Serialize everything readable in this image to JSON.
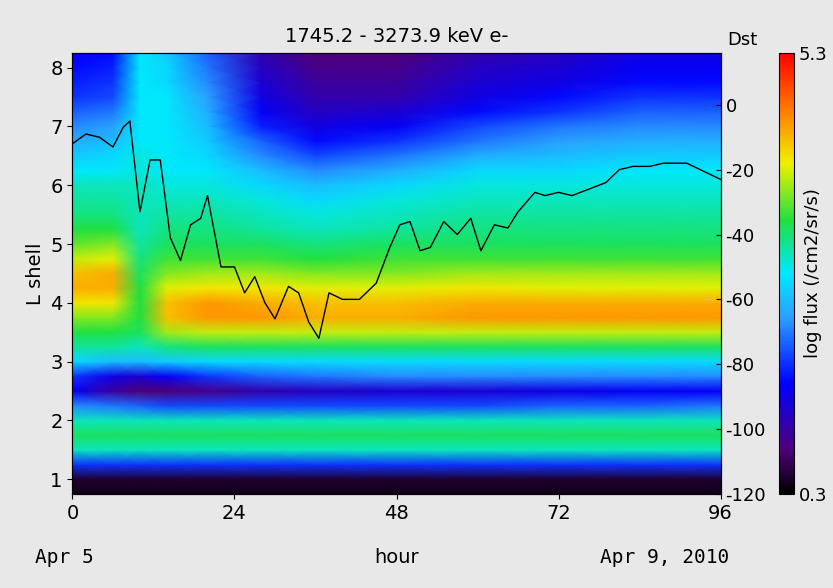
{
  "chart_data": {
    "type": "heatmap",
    "title": "1745.2 - 3273.9 keV e-",
    "x_label": "hour",
    "y_label": "L shell",
    "y2_label": "Dst",
    "annotations": [
      "Apr 5",
      "Apr 9, 2010"
    ],
    "xlim": [
      0,
      96
    ],
    "xticks": [
      0,
      24,
      48,
      72,
      96
    ],
    "ylim": [
      0.75,
      8.25
    ],
    "yticks": [
      1,
      2,
      3,
      4,
      5,
      6,
      7,
      8
    ],
    "y2lim": [
      -120,
      16
    ],
    "y2ticks": [
      -120,
      -100,
      -80,
      -60,
      -40,
      -20,
      0
    ],
    "x": [
      0,
      6,
      10,
      14,
      20,
      28,
      36,
      48,
      60,
      72,
      84,
      96
    ],
    "y": [
      0.75,
      1.0,
      1.25,
      1.5,
      1.75,
      2.0,
      2.25,
      2.5,
      2.75,
      3.0,
      3.25,
      3.5,
      3.75,
      4.0,
      4.25,
      4.5,
      4.75,
      5.0,
      5.25,
      5.5,
      5.75,
      6.0,
      6.25,
      6.5,
      6.75,
      7.0,
      7.25,
      7.5,
      7.75,
      8.0,
      8.25
    ],
    "cells": [
      [
        0.4,
        0.4,
        0.4,
        0.4,
        0.4,
        0.4,
        0.4,
        0.4,
        0.4,
        0.4,
        0.4,
        0.4
      ],
      [
        0.5,
        0.5,
        0.5,
        0.5,
        0.5,
        0.5,
        0.5,
        0.5,
        0.5,
        0.5,
        0.5,
        0.5
      ],
      [
        1.8,
        1.8,
        1.8,
        1.8,
        1.8,
        1.8,
        1.8,
        1.8,
        1.8,
        1.8,
        1.8,
        1.8
      ],
      [
        3.0,
        3.0,
        3.0,
        3.0,
        3.0,
        3.0,
        3.0,
        3.0,
        3.0,
        3.0,
        3.0,
        3.0
      ],
      [
        3.3,
        3.3,
        3.3,
        3.3,
        3.3,
        3.3,
        3.3,
        3.3,
        3.3,
        3.3,
        3.3,
        3.3
      ],
      [
        3.0,
        3.0,
        3.0,
        3.0,
        3.0,
        3.0,
        3.0,
        3.0,
        3.0,
        3.0,
        3.0,
        3.0
      ],
      [
        2.2,
        2.1,
        2.0,
        1.9,
        1.9,
        1.9,
        1.9,
        1.9,
        1.9,
        2.0,
        2.0,
        2.1
      ],
      [
        1.5,
        1.0,
        0.8,
        0.8,
        0.9,
        1.1,
        1.2,
        1.3,
        1.3,
        1.4,
        1.5,
        1.5
      ],
      [
        1.8,
        1.4,
        1.3,
        1.5,
        1.8,
        2.0,
        2.1,
        2.2,
        2.2,
        2.2,
        2.2,
        2.2
      ],
      [
        2.7,
        2.5,
        2.5,
        2.6,
        2.7,
        2.7,
        2.7,
        2.7,
        2.7,
        2.7,
        2.7,
        2.7
      ],
      [
        3.1,
        3.1,
        3.0,
        3.2,
        3.3,
        3.3,
        3.3,
        3.3,
        3.3,
        3.3,
        3.3,
        3.3
      ],
      [
        3.4,
        3.4,
        3.3,
        3.8,
        3.9,
        3.9,
        3.9,
        3.9,
        3.9,
        3.9,
        3.9,
        3.9
      ],
      [
        3.7,
        3.7,
        3.4,
        4.3,
        4.5,
        4.5,
        4.4,
        4.4,
        4.5,
        4.5,
        4.5,
        4.5
      ],
      [
        4.1,
        4.1,
        3.4,
        4.3,
        4.5,
        4.4,
        4.3,
        4.3,
        4.4,
        4.4,
        4.4,
        4.4
      ],
      [
        4.4,
        4.4,
        3.4,
        4.0,
        4.1,
        4.1,
        4.0,
        4.0,
        4.1,
        4.0,
        4.0,
        4.0
      ],
      [
        4.3,
        4.4,
        3.3,
        3.7,
        3.8,
        3.8,
        3.7,
        3.7,
        3.8,
        3.8,
        3.8,
        3.8
      ],
      [
        3.9,
        4.0,
        3.2,
        3.5,
        3.5,
        3.5,
        3.4,
        3.5,
        3.5,
        3.5,
        3.5,
        3.5
      ],
      [
        3.6,
        3.7,
        3.1,
        3.3,
        3.3,
        3.3,
        3.2,
        3.3,
        3.3,
        3.3,
        3.3,
        3.3
      ],
      [
        3.4,
        3.4,
        3.0,
        3.2,
        3.2,
        3.1,
        3.0,
        3.1,
        3.2,
        3.2,
        3.2,
        3.2
      ],
      [
        3.2,
        3.2,
        3.0,
        3.1,
        3.1,
        3.0,
        2.9,
        3.0,
        3.1,
        3.1,
        3.1,
        3.1
      ],
      [
        3.1,
        3.1,
        3.0,
        3.0,
        3.0,
        2.9,
        2.7,
        2.9,
        3.0,
        3.0,
        3.0,
        3.0
      ],
      [
        3.0,
        3.0,
        3.0,
        2.9,
        2.9,
        2.7,
        2.5,
        2.7,
        2.9,
        2.9,
        2.9,
        2.9
      ],
      [
        2.8,
        2.8,
        2.9,
        2.8,
        2.8,
        2.5,
        2.2,
        2.4,
        2.7,
        2.7,
        2.8,
        2.8
      ],
      [
        2.6,
        2.7,
        2.9,
        2.8,
        2.7,
        2.2,
        1.9,
        2.1,
        2.4,
        2.5,
        2.6,
        2.6
      ],
      [
        2.4,
        2.5,
        2.8,
        2.8,
        2.6,
        2.0,
        1.6,
        1.8,
        2.1,
        2.3,
        2.4,
        2.4
      ],
      [
        2.2,
        2.3,
        2.8,
        2.8,
        2.5,
        1.7,
        1.4,
        1.5,
        1.9,
        2.1,
        2.2,
        2.2
      ],
      [
        2.0,
        2.1,
        2.8,
        2.8,
        2.4,
        1.5,
        1.2,
        1.3,
        1.6,
        1.8,
        2.0,
        2.0
      ],
      [
        1.8,
        1.9,
        2.8,
        2.8,
        2.3,
        1.4,
        1.1,
        1.1,
        1.4,
        1.6,
        1.8,
        1.8
      ],
      [
        1.7,
        1.8,
        2.8,
        2.7,
        2.2,
        1.3,
        1.0,
        1.0,
        1.3,
        1.4,
        1.6,
        1.6
      ],
      [
        1.6,
        1.7,
        2.8,
        2.7,
        2.1,
        1.2,
        0.9,
        0.9,
        1.2,
        1.3,
        1.5,
        1.5
      ],
      [
        1.5,
        1.6,
        2.8,
        2.6,
        2.0,
        1.1,
        0.8,
        0.8,
        1.1,
        1.2,
        1.4,
        1.4
      ]
    ],
    "colorbar": {
      "range": [
        0.3,
        5.3
      ],
      "ticks": [
        0.3,
        5.3
      ],
      "label": "log flux (/cm2/sr/s)"
    },
    "series": [
      {
        "type": "line",
        "axis": "y2",
        "color": "#000000",
        "x": [
          0,
          2,
          4,
          6,
          7.5,
          8.5,
          10,
          11.5,
          13,
          14.5,
          16,
          17.5,
          19,
          20,
          22,
          24,
          25.5,
          27,
          28.5,
          30,
          32,
          33.5,
          35,
          36.5,
          38,
          40,
          42.5,
          45,
          47,
          48.5,
          50,
          51.5,
          53,
          55,
          57,
          59,
          60.5,
          62.5,
          64.5,
          66,
          68.5,
          70,
          72,
          74,
          76.5,
          79,
          81,
          83,
          85.5,
          87.5,
          91,
          94,
          96
        ],
        "values": [
          -12,
          -9,
          -10,
          -13,
          -7,
          -5,
          -33,
          -17,
          -17,
          -41,
          -48,
          -37,
          -35,
          -28,
          -50,
          -50,
          -58,
          -53,
          -61,
          -66,
          -56,
          -58,
          -67,
          -72,
          -58,
          -60,
          -60,
          -55,
          -44,
          -37,
          -36,
          -45,
          -44,
          -36,
          -40,
          -35,
          -45,
          -37,
          -38,
          -33,
          -27,
          -28,
          -27,
          -28,
          -26,
          -24,
          -20,
          -19,
          -19,
          -18,
          -18,
          -21,
          -23
        ]
      }
    ]
  }
}
